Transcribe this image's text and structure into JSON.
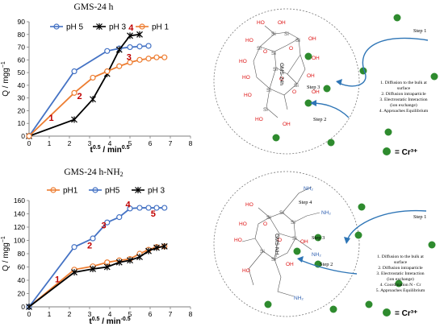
{
  "chart_data": [
    {
      "type": "line",
      "title": "GMS-24 h",
      "xlabel": "t0.5 / min0.5",
      "ylabel": "Q / mgg-1",
      "xlim": [
        0,
        8
      ],
      "ylim": [
        0,
        90
      ],
      "x_ticks": [
        "0",
        "1",
        "2",
        "3",
        "4",
        "5",
        "6",
        "7",
        "8"
      ],
      "y_ticks": [
        "0",
        "10",
        "20",
        "30",
        "40",
        "50",
        "60",
        "70",
        "80",
        "90"
      ],
      "legend_position": "top",
      "grid": false,
      "series": [
        {
          "name": "pH 5",
          "color": "#4472c4",
          "marker": "circle",
          "x": [
            0,
            2.24,
            3.87,
            4.47,
            5.0,
            5.48,
            5.92
          ],
          "y": [
            0,
            51,
            67,
            69,
            70,
            70.5,
            71
          ]
        },
        {
          "name": "pH 3",
          "color": "#000000",
          "marker": "star",
          "x": [
            0,
            2.24,
            3.16,
            3.87,
            4.47,
            5.0,
            5.48
          ],
          "y": [
            0,
            13,
            29,
            49,
            68,
            79,
            80
          ]
        },
        {
          "name": "pH 1",
          "color": "#ed7d31",
          "marker": "circle",
          "x": [
            0,
            2.24,
            3.16,
            3.87,
            4.47,
            5.0,
            5.48,
            5.92,
            6.32,
            6.71
          ],
          "y": [
            0,
            34,
            46,
            51,
            55,
            58,
            60,
            61,
            62,
            62
          ]
        }
      ],
      "annotations": [
        {
          "text": "1",
          "x": 1.1,
          "y": 12
        },
        {
          "text": "2",
          "x": 2.5,
          "y": 29
        },
        {
          "text": "3",
          "x": 4.95,
          "y": 60
        },
        {
          "text": "4",
          "x": 5.05,
          "y": 83
        }
      ]
    },
    {
      "type": "line",
      "title": "GMS-24 h-NH2",
      "xlabel": "t0.5 / min-0.5",
      "ylabel": "Q / mgg-1",
      "xlim": [
        0,
        8
      ],
      "ylim": [
        0,
        160
      ],
      "x_ticks": [
        "0",
        "1",
        "2",
        "3",
        "4",
        "5",
        "6",
        "7",
        "8"
      ],
      "y_ticks": [
        "0",
        "20",
        "40",
        "60",
        "80",
        "100",
        "120",
        "140",
        "160"
      ],
      "legend_position": "top",
      "grid": false,
      "series": [
        {
          "name": "pH1",
          "color": "#ed7d31",
          "marker": "circle",
          "x": [
            0,
            2.24,
            3.16,
            3.87,
            4.47,
            5.0,
            5.48,
            5.92,
            6.32,
            6.71
          ],
          "y": [
            0,
            56,
            61,
            67,
            70,
            72,
            80,
            86,
            90,
            91
          ]
        },
        {
          "name": "pH5",
          "color": "#4472c4",
          "marker": "circle",
          "x": [
            0,
            2.24,
            3.16,
            3.87,
            4.47,
            5.0,
            5.48,
            5.92,
            6.32,
            6.71
          ],
          "y": [
            0,
            90,
            103,
            127,
            135,
            148,
            149,
            149,
            149,
            149
          ]
        },
        {
          "name": "pH 3",
          "color": "#000000",
          "marker": "star",
          "x": [
            0,
            2.24,
            3.16,
            3.87,
            4.47,
            5.0,
            5.48,
            5.92,
            6.32,
            6.71
          ],
          "y": [
            0,
            52,
            57,
            60,
            67,
            70,
            75,
            84,
            89,
            91
          ]
        }
      ],
      "annotations": [
        {
          "text": "1",
          "x": 1.4,
          "y": 37
        },
        {
          "text": "2",
          "x": 3.0,
          "y": 88
        },
        {
          "text": "3",
          "x": 3.7,
          "y": 118
        },
        {
          "text": "4",
          "x": 4.9,
          "y": 150
        },
        {
          "text": "5",
          "x": 6.15,
          "y": 136
        }
      ]
    }
  ],
  "diagram_top": {
    "label": "GMS-24h",
    "step1": "Step 1",
    "step2": "Step 2",
    "step3": "Step 3",
    "mechanism": [
      "1.   Diffusion to the bulk at",
      "surface",
      "2.   Diffusion intraparticle",
      "3.   Electrostatic Interaction",
      "(ion exchange)",
      "4.   Approaches Equilibrium"
    ],
    "legend_ion": "= Cr³⁺"
  },
  "diagram_bottom": {
    "label": "GMS-NH₂",
    "step1": "Step 1",
    "step2": "Step 2",
    "step3": "Step 3",
    "step4": "Step 4",
    "mechanism": [
      "1.   Diffusion to the bulk at",
      "surface",
      "2.   Diffusion intraparticle",
      "3.   Electrostatic Interaction",
      "(ion exchange)",
      "4.   Coordination N - Cr",
      "5.   Approaches Equilibrium"
    ],
    "legend_ion": "= Cr³⁺"
  }
}
